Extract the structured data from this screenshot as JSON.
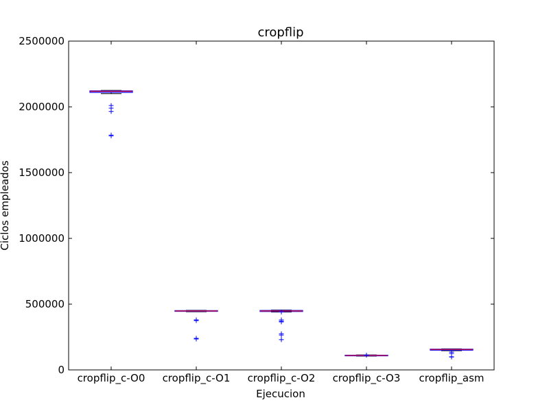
{
  "chart_data": {
    "type": "box",
    "title": "cropflip",
    "xlabel": "Ejecucion",
    "ylabel": "Ciclos empleados",
    "ylim": [
      0,
      2500000
    ],
    "yticks": [
      0,
      500000,
      1000000,
      1500000,
      2000000,
      2500000
    ],
    "ytick_labels": [
      "0",
      "500000",
      "1000000",
      "1500000",
      "2000000",
      "2500000"
    ],
    "grid": false,
    "categories": [
      "cropflip_c-O0",
      "cropflip_c-O1",
      "cropflip_c-O2",
      "cropflip_c-O3",
      "cropflip_asm"
    ],
    "boxes": [
      {
        "q1": 2110000,
        "median": 2118000,
        "q3": 2122000,
        "whisker_low": 2100000,
        "whisker_high": 2125000,
        "outliers": [
          2010000,
          1990000,
          1965000,
          1785000,
          1780000
        ]
      },
      {
        "q1": 445000,
        "median": 448000,
        "q3": 451000,
        "whisker_low": 442000,
        "whisker_high": 453000,
        "outliers": [
          380000,
          375000,
          240000,
          235000
        ]
      },
      {
        "q1": 444000,
        "median": 448000,
        "q3": 452000,
        "whisker_low": 440000,
        "whisker_high": 455000,
        "outliers": [
          440000,
          380000,
          370000,
          365000,
          275000,
          265000,
          230000
        ]
      },
      {
        "q1": 108000,
        "median": 110000,
        "q3": 112000,
        "whisker_low": 105000,
        "whisker_high": 114000,
        "outliers": [
          112000
        ]
      },
      {
        "q1": 150000,
        "median": 155000,
        "q3": 158000,
        "whisker_low": 146000,
        "whisker_high": 160000,
        "outliers": [
          135000,
          125000,
          100000,
          98000
        ]
      }
    ],
    "colors": {
      "box": "#0000ff",
      "median": "#ff0000",
      "whisker": "#000000",
      "outlier": "#0000ff",
      "overlap": "#c0184a"
    }
  }
}
